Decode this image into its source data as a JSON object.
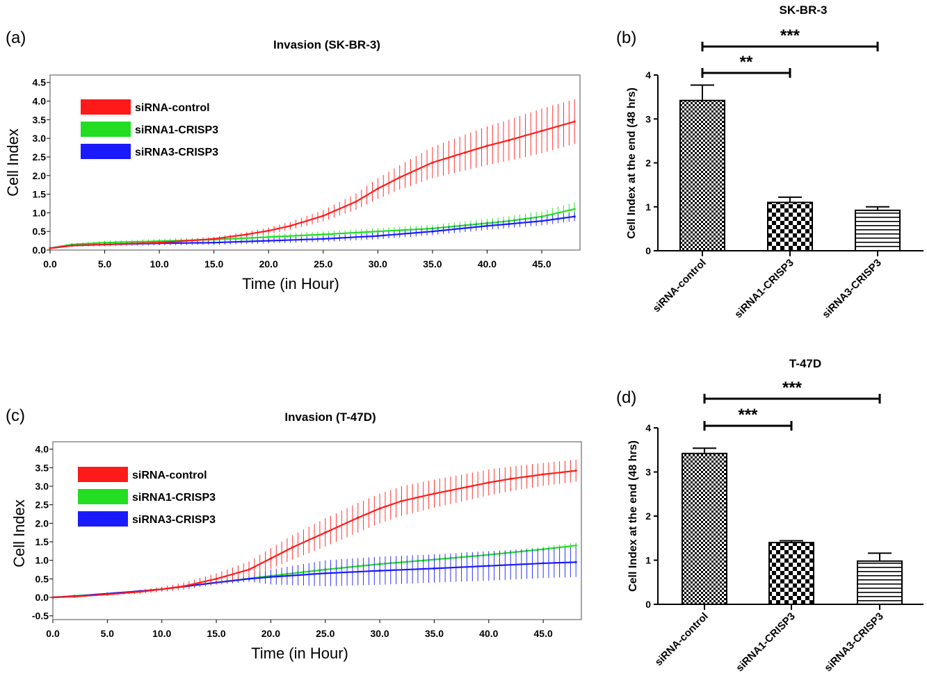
{
  "panels": {
    "a": "(a)",
    "b": "(b)",
    "c": "(c)",
    "d": "(d)"
  },
  "chart_data": [
    {
      "id": "a",
      "type": "line",
      "title": "Invasion (SK-BR-3)",
      "xlabel": "Time (in Hour)",
      "ylabel": "Cell Index",
      "xlim": [
        0,
        48.5
      ],
      "ylim": [
        0,
        4.7
      ],
      "xticks": [
        "0.0",
        "5.0",
        "10.0",
        "15.0",
        "20.0",
        "25.0",
        "30.0",
        "35.0",
        "40.0",
        "45.0"
      ],
      "yticks": [
        "0.0",
        "0.5",
        "1.0",
        "1.5",
        "2.0",
        "2.5",
        "3.0",
        "3.5",
        "4.0",
        "4.5"
      ],
      "legend_position": "top-left",
      "series": [
        {
          "name": "siRNA-control",
          "color": "#ff1a1a",
          "x": [
            0,
            2,
            5,
            10,
            15,
            18,
            20,
            22,
            25,
            28,
            30,
            32,
            35,
            38,
            40,
            42,
            45,
            48
          ],
          "y": [
            0.05,
            0.12,
            0.15,
            0.2,
            0.3,
            0.42,
            0.52,
            0.65,
            0.92,
            1.3,
            1.65,
            1.95,
            2.35,
            2.62,
            2.8,
            2.95,
            3.2,
            3.45
          ],
          "err": [
            0.02,
            0.02,
            0.03,
            0.04,
            0.05,
            0.07,
            0.09,
            0.11,
            0.15,
            0.22,
            0.28,
            0.33,
            0.42,
            0.48,
            0.52,
            0.55,
            0.6,
            0.6
          ]
        },
        {
          "name": "siRNA1-CRISP3",
          "color": "#22dd22",
          "x": [
            0,
            2,
            5,
            10,
            15,
            20,
            25,
            30,
            35,
            40,
            42,
            45,
            48
          ],
          "y": [
            0.05,
            0.15,
            0.2,
            0.24,
            0.28,
            0.35,
            0.42,
            0.5,
            0.58,
            0.72,
            0.78,
            0.9,
            1.1
          ],
          "err": [
            0.02,
            0.04,
            0.05,
            0.06,
            0.07,
            0.08,
            0.08,
            0.09,
            0.1,
            0.12,
            0.13,
            0.15,
            0.18
          ]
        },
        {
          "name": "siRNA3-CRISP3",
          "color": "#1a1aff",
          "x": [
            0,
            2,
            5,
            10,
            15,
            20,
            25,
            30,
            35,
            40,
            42,
            45,
            48
          ],
          "y": [
            0.05,
            0.12,
            0.15,
            0.18,
            0.2,
            0.25,
            0.3,
            0.38,
            0.5,
            0.65,
            0.7,
            0.78,
            0.9
          ],
          "err": [
            0.02,
            0.03,
            0.04,
            0.05,
            0.06,
            0.07,
            0.08,
            0.09,
            0.1,
            0.11,
            0.11,
            0.12,
            0.12
          ]
        }
      ]
    },
    {
      "id": "b",
      "type": "bar",
      "title": "SK-BR-3",
      "ylabel": "Cell Index at the end (48 hrs)",
      "ylim": [
        0,
        4
      ],
      "yticks": [
        "0",
        "1",
        "2",
        "3",
        "4"
      ],
      "categories": [
        "siRNA-control",
        "siRNA1-CRISP3",
        "siRNA3-CRISP3"
      ],
      "values": [
        3.42,
        1.1,
        0.92
      ],
      "errors": [
        0.35,
        0.12,
        0.08
      ],
      "significance": [
        {
          "from": 0,
          "to": 1,
          "label": "**"
        },
        {
          "from": 0,
          "to": 2,
          "label": "***"
        }
      ]
    },
    {
      "id": "c",
      "type": "line",
      "title": "Invasion (T-47D)",
      "xlabel": "Time (in Hour)",
      "ylabel": "Cell Index",
      "xlim": [
        0,
        48.5
      ],
      "ylim": [
        -0.6,
        4.2
      ],
      "xticks": [
        "0.0",
        "5.0",
        "10.0",
        "15.0",
        "20.0",
        "25.0",
        "30.0",
        "35.0",
        "40.0",
        "45.0"
      ],
      "yticks": [
        "-0.5",
        "0.0",
        "0.5",
        "1.0",
        "1.5",
        "2.0",
        "2.5",
        "3.0",
        "3.5",
        "4.0"
      ],
      "legend_position": "top-left",
      "series": [
        {
          "name": "siRNA-control",
          "color": "#ff1a1a",
          "x": [
            0,
            2,
            5,
            8,
            10,
            12,
            15,
            18,
            20,
            22,
            25,
            28,
            30,
            32,
            35,
            38,
            40,
            42,
            45,
            48
          ],
          "y": [
            0,
            0.02,
            0.08,
            0.15,
            0.22,
            0.3,
            0.5,
            0.75,
            1.05,
            1.35,
            1.75,
            2.15,
            2.4,
            2.6,
            2.8,
            2.98,
            3.1,
            3.2,
            3.32,
            3.42
          ],
          "err": [
            0.02,
            0.02,
            0.03,
            0.05,
            0.07,
            0.1,
            0.15,
            0.22,
            0.28,
            0.33,
            0.38,
            0.4,
            0.4,
            0.4,
            0.38,
            0.36,
            0.35,
            0.33,
            0.31,
            0.3
          ]
        },
        {
          "name": "siRNA1-CRISP3",
          "color": "#22dd22",
          "x": [
            0,
            2,
            5,
            8,
            10,
            15,
            20,
            25,
            30,
            35,
            40,
            45,
            48
          ],
          "y": [
            0,
            0.04,
            0.1,
            0.16,
            0.22,
            0.4,
            0.58,
            0.75,
            0.9,
            1.02,
            1.15,
            1.3,
            1.4
          ],
          "err": [
            0.03,
            0.02,
            0.02,
            0.03,
            0.03,
            0.04,
            0.04,
            0.05,
            0.05,
            0.06,
            0.06,
            0.07,
            0.08
          ]
        },
        {
          "name": "siRNA3-CRISP3",
          "color": "#1a1aff",
          "x": [
            0,
            2,
            5,
            8,
            10,
            15,
            18,
            20,
            25,
            30,
            35,
            40,
            45,
            48
          ],
          "y": [
            0,
            0.03,
            0.1,
            0.17,
            0.22,
            0.4,
            0.5,
            0.55,
            0.65,
            0.72,
            0.78,
            0.85,
            0.92,
            0.95
          ],
          "err": [
            0.03,
            0.02,
            0.02,
            0.03,
            0.04,
            0.06,
            0.08,
            0.2,
            0.35,
            0.38,
            0.38,
            0.4,
            0.4,
            0.4
          ]
        }
      ]
    },
    {
      "id": "d",
      "type": "bar",
      "title": "T-47D",
      "ylabel": "Cell Index at the end (48 hrs)",
      "ylim": [
        0,
        4
      ],
      "yticks": [
        "0",
        "1",
        "2",
        "3",
        "4"
      ],
      "categories": [
        "siRNA-control",
        "siRNA1-CRISP3",
        "siRNA3-CRISP3"
      ],
      "values": [
        3.42,
        1.4,
        0.98
      ],
      "errors": [
        0.12,
        0.04,
        0.18
      ],
      "significance": [
        {
          "from": 0,
          "to": 1,
          "label": "***"
        },
        {
          "from": 0,
          "to": 2,
          "label": "***"
        }
      ]
    }
  ]
}
